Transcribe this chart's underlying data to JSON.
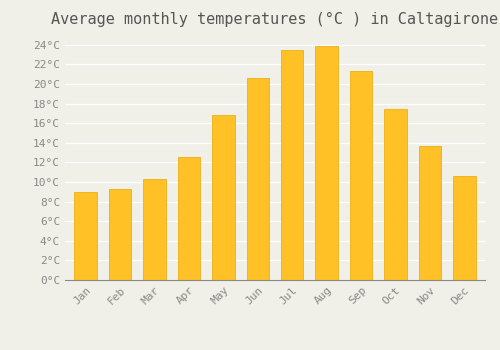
{
  "title": "Average monthly temperatures (°C ) in Caltagirone",
  "months": [
    "Jan",
    "Feb",
    "Mar",
    "Apr",
    "May",
    "Jun",
    "Jul",
    "Aug",
    "Sep",
    "Oct",
    "Nov",
    "Dec"
  ],
  "temperatures": [
    9.0,
    9.3,
    10.3,
    12.6,
    16.8,
    20.6,
    23.5,
    23.9,
    21.3,
    17.5,
    13.7,
    10.6
  ],
  "bar_color": "#FFC125",
  "bar_edge_color": "#E8A800",
  "background_color": "#F0F0E8",
  "grid_color": "#FFFFFF",
  "ylim": [
    0,
    25
  ],
  "ytick_step": 2,
  "title_fontsize": 11,
  "tick_fontsize": 8,
  "tick_color": "#888888",
  "title_color": "#555555"
}
